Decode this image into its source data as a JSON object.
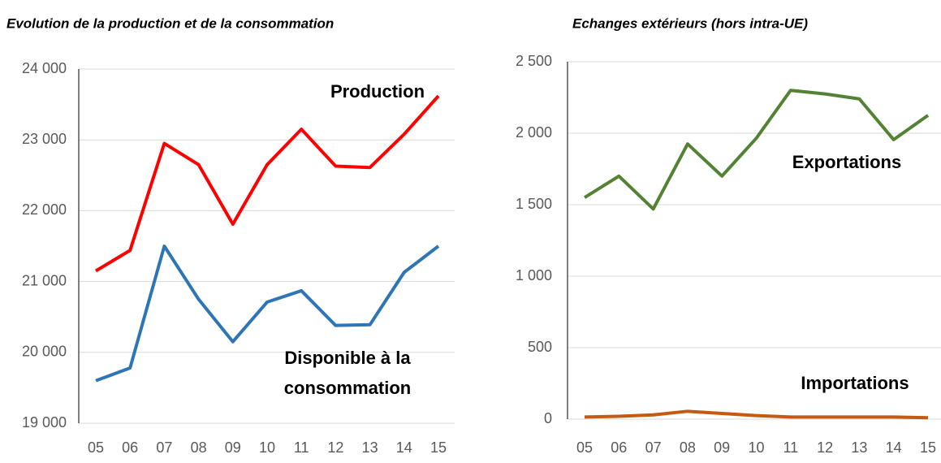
{
  "chart_data": [
    {
      "type": "line",
      "title": "Evolution de la production et de la consommation",
      "categories": [
        "05",
        "06",
        "07",
        "08",
        "09",
        "10",
        "11",
        "12",
        "13",
        "14",
        "15"
      ],
      "series": [
        {
          "name": "Production",
          "color": "#ff0000",
          "values": [
            21150,
            21440,
            22950,
            22650,
            21810,
            22650,
            23150,
            22630,
            22610,
            23080,
            23620
          ]
        },
        {
          "name": "Disponible à la consommation",
          "color": "#2e75b6",
          "values": [
            19600,
            19780,
            21500,
            20750,
            20150,
            20710,
            20870,
            20380,
            20390,
            21130,
            21500
          ]
        }
      ],
      "ylim": [
        19000,
        24000
      ],
      "yticks": [
        {
          "value": 19000,
          "label": "19 000"
        },
        {
          "value": 20000,
          "label": "20 000"
        },
        {
          "value": 21000,
          "label": "21 000"
        },
        {
          "value": 22000,
          "label": "22 000"
        },
        {
          "value": 23000,
          "label": "23 000"
        },
        {
          "value": 24000,
          "label": "24 000"
        }
      ],
      "grid": true
    },
    {
      "type": "line",
      "title": "Echanges extérieurs (hors intra-UE)",
      "categories": [
        "05",
        "06",
        "07",
        "08",
        "09",
        "10",
        "11",
        "12",
        "13",
        "14",
        "15"
      ],
      "series": [
        {
          "name": "Exportations",
          "color": "#548235",
          "values": [
            1550,
            1700,
            1470,
            1925,
            1700,
            1965,
            2300,
            2275,
            2240,
            1955,
            2125
          ]
        },
        {
          "name": "Importations",
          "color": "#c55a11",
          "values": [
            15,
            20,
            30,
            55,
            40,
            25,
            15,
            15,
            15,
            15,
            10
          ]
        }
      ],
      "ylim": [
        0,
        2500
      ],
      "yticks": [
        0,
        500,
        {
          "value": 1000,
          "label": "1 000"
        },
        {
          "value": 1500,
          "label": "1 500"
        },
        {
          "value": 2000,
          "label": "2 000"
        },
        {
          "value": 2500,
          "label": "2 500"
        }
      ],
      "grid": true
    }
  ]
}
